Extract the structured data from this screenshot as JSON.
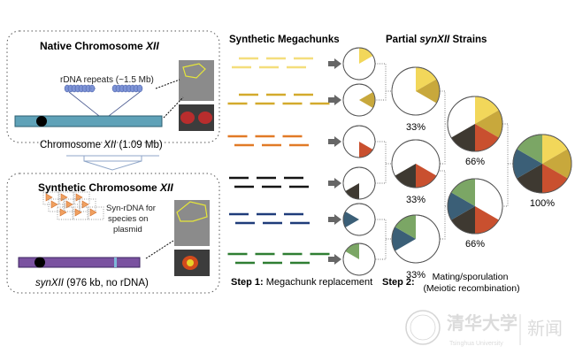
{
  "native_panel": {
    "title": "Native Chromosome ",
    "title_italic": "XII",
    "rdna_label": "rDNA repeats (~1.5 Mb)",
    "chrom_label_pre": "Chromosome ",
    "chrom_label_italic": "XII",
    "chrom_label_post": " (1.09 Mb)"
  },
  "synthetic_panel": {
    "title": "Synthetic Chromosome ",
    "title_italic": "XII",
    "plasmid_label": [
      "Syn-rDNA for",
      "species on",
      "plasmid"
    ],
    "chrom_label_italic": "synXII",
    "chrom_label_post": " (976 kb, no rDNA)"
  },
  "megachunks": {
    "title": "Synthetic Megachunks",
    "colors": [
      "#f4de7c",
      "#d3aa2c",
      "#e17a27",
      "#151515",
      "#1f3c7a",
      "#2f7e33"
    ]
  },
  "strains": {
    "title_pre": "Partial ",
    "title_italic": "synXII",
    "title_post": " Strains",
    "segment_colors": [
      "#f2d75a",
      "#c8a83c",
      "#c9502f",
      "#3e3931",
      "#3b5f77",
      "#7ba665"
    ],
    "small": [
      [
        0
      ],
      [
        1
      ],
      [
        2
      ],
      [
        3
      ],
      [
        4
      ],
      [
        5
      ]
    ],
    "medium": [
      {
        "segments": [
          0,
          1
        ],
        "label": "33%"
      },
      {
        "segments": [
          2,
          3
        ],
        "label": "33%"
      },
      {
        "segments": [
          4,
          5
        ],
        "label": "33%"
      }
    ],
    "large": [
      {
        "segments": [
          0,
          1,
          2,
          3
        ],
        "label": "66%"
      },
      {
        "segments": [
          2,
          3,
          4,
          5
        ],
        "label": "66%"
      }
    ],
    "final": {
      "segments": [
        0,
        1,
        2,
        3,
        4,
        5
      ],
      "label": "100%"
    }
  },
  "steps": {
    "step1_bold": "Step 1:",
    "step1_text": " Megachunk replacement",
    "step2_bold": "Step 2:",
    "step2_text": [
      "Mating/sporulation",
      "(Meiotic recombination)"
    ]
  },
  "watermark": "Tsinghua University"
}
